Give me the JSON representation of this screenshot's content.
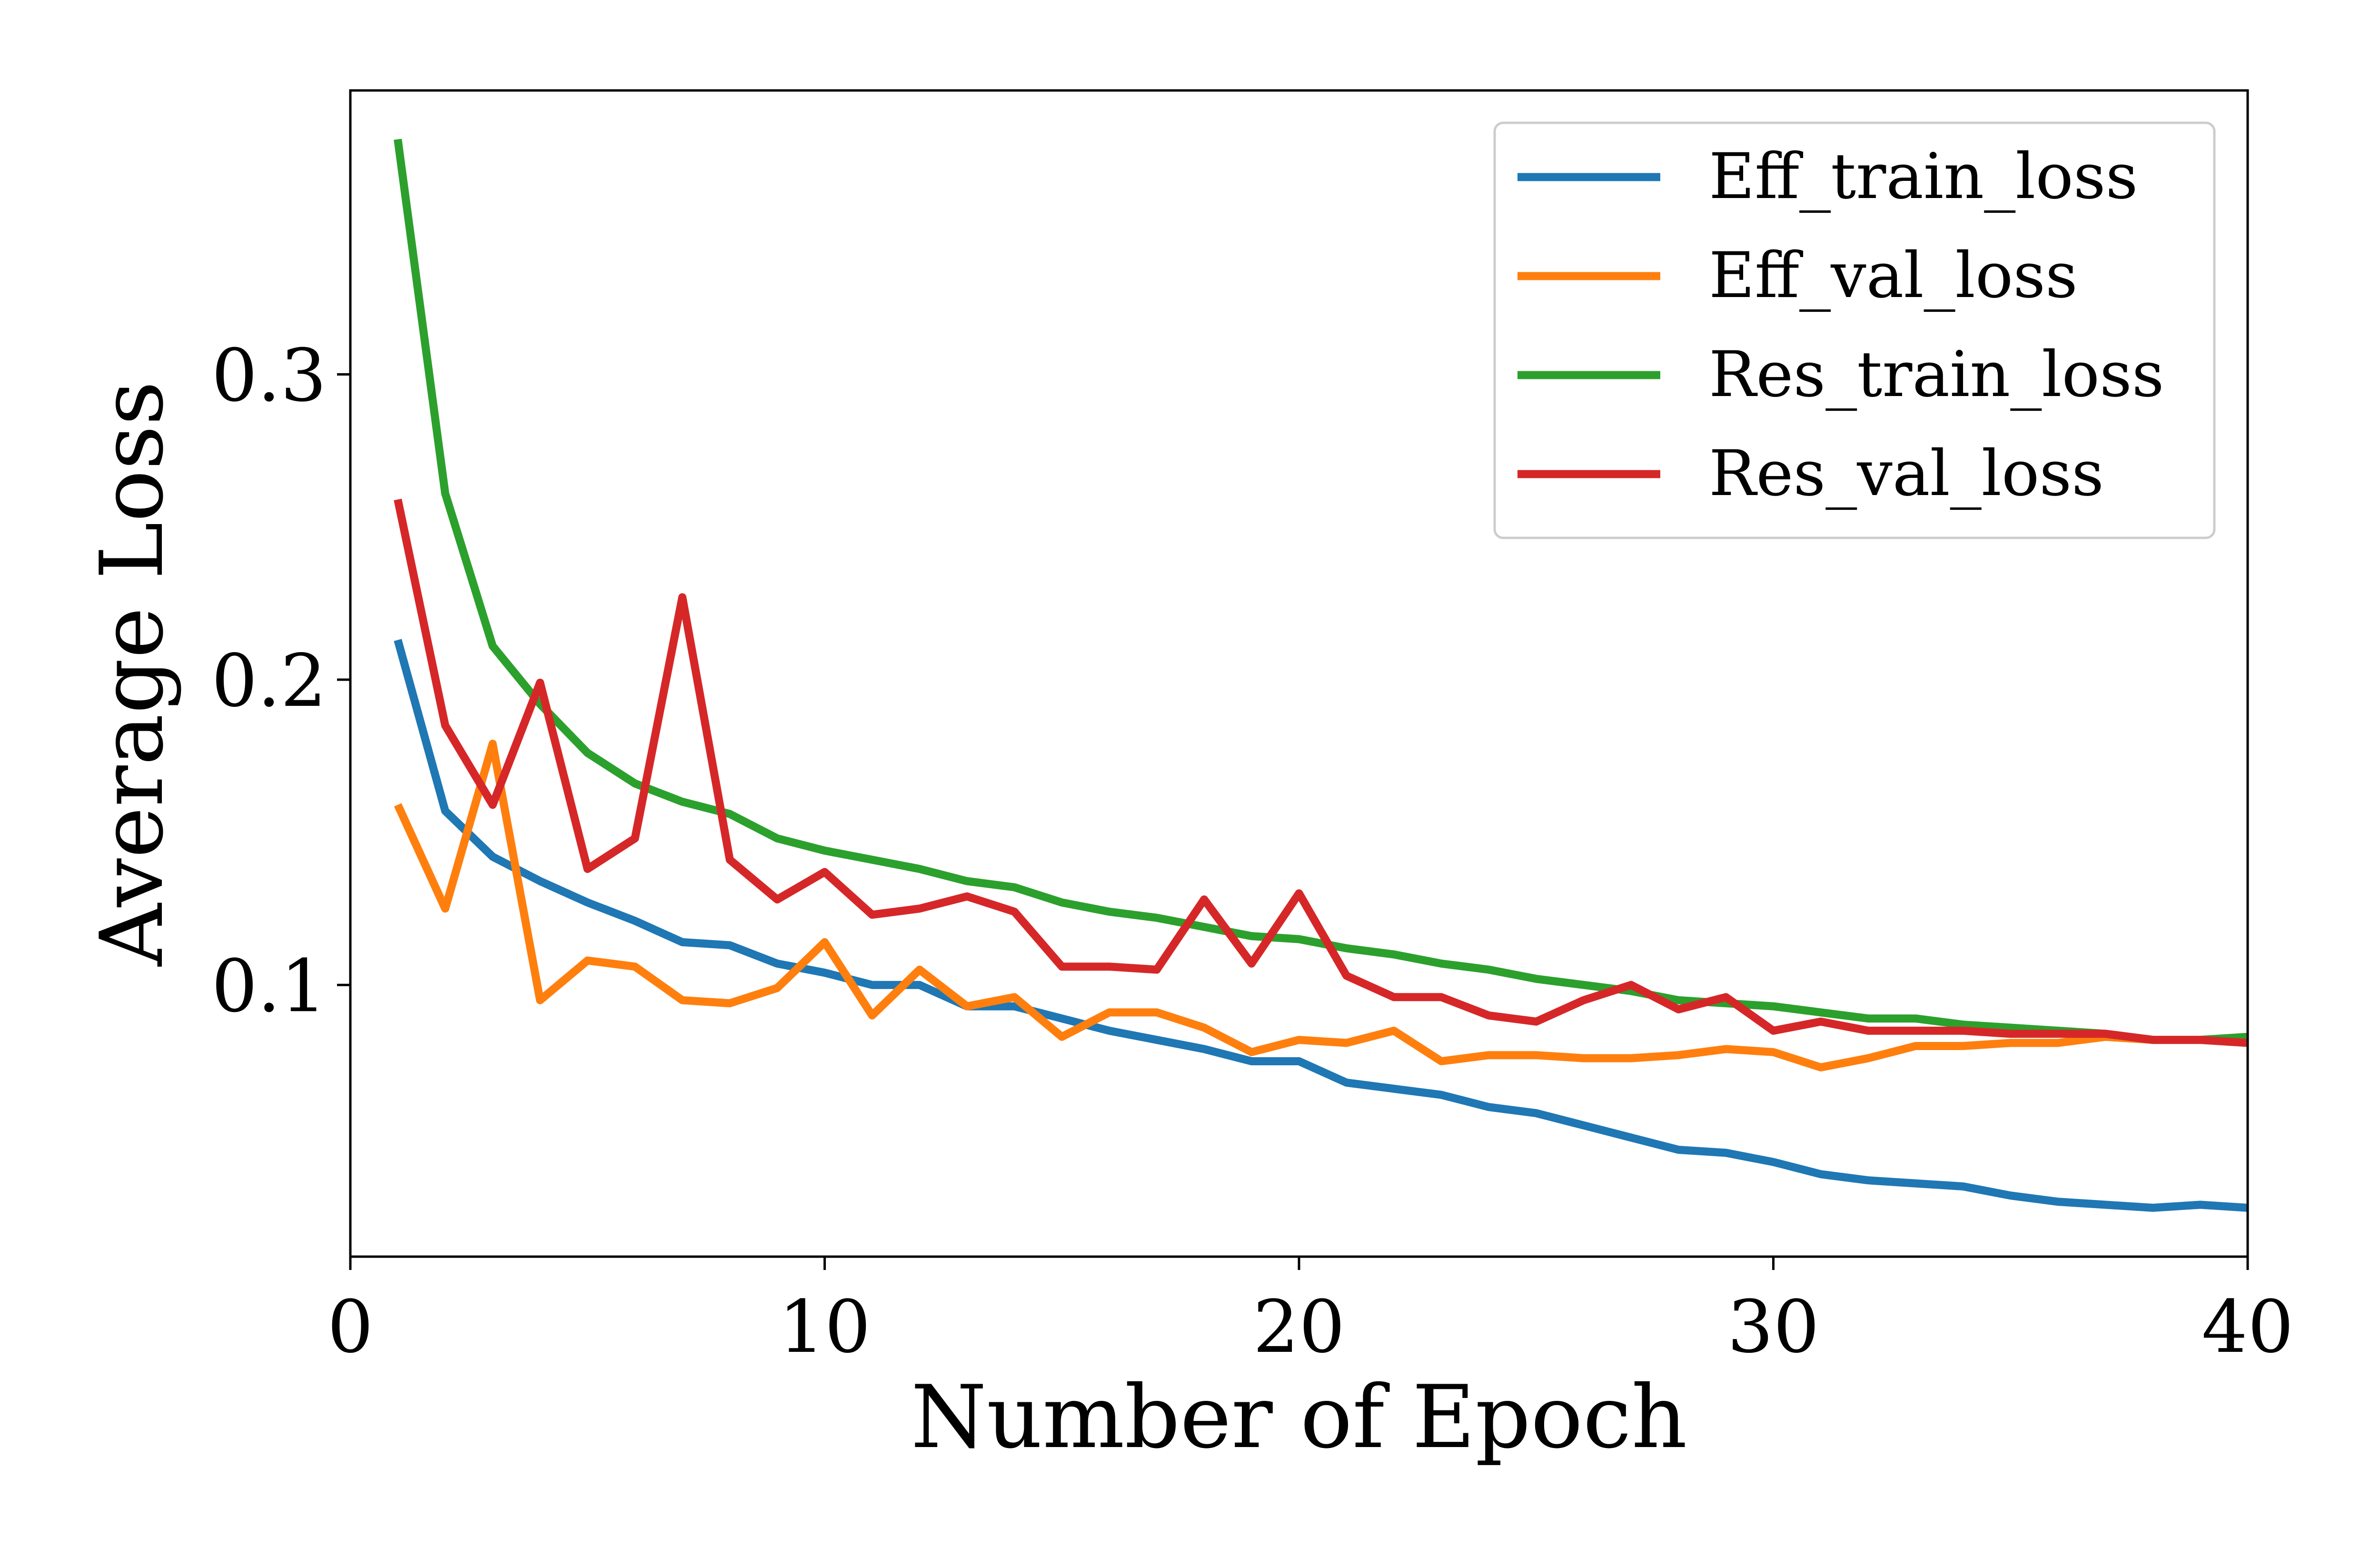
{
  "chart_data": {
    "type": "line",
    "title": "",
    "xlabel": "Number of Epoch",
    "ylabel": "Average Loss",
    "xlim": [
      0,
      40
    ],
    "ylim": [
      0.011,
      0.393
    ],
    "xticks": [
      0,
      10,
      20,
      30,
      40
    ],
    "xtick_labels": [
      "0",
      "10",
      "20",
      "30",
      "40"
    ],
    "yticks": [
      0.1,
      0.2,
      0.3
    ],
    "ytick_labels": [
      "0.1",
      "0.2",
      "0.3"
    ],
    "grid": false,
    "legend_position": "upper right",
    "x": [
      1,
      2,
      3,
      4,
      5,
      6,
      7,
      8,
      9,
      10,
      11,
      12,
      13,
      14,
      15,
      16,
      17,
      18,
      19,
      20,
      21,
      22,
      23,
      24,
      25,
      26,
      27,
      28,
      29,
      30,
      31,
      32,
      33,
      34,
      35,
      36,
      37,
      38,
      39,
      40
    ],
    "series": [
      {
        "name": "Eff_train_loss",
        "color": "#1f77b4",
        "values": [
          0.213,
          0.157,
          0.142,
          0.134,
          0.127,
          0.121,
          0.114,
          0.113,
          0.107,
          0.104,
          0.1,
          0.1,
          0.093,
          0.093,
          0.089,
          0.085,
          0.082,
          0.079,
          0.075,
          0.075,
          0.068,
          0.066,
          0.064,
          0.06,
          0.058,
          0.054,
          0.05,
          0.046,
          0.045,
          0.042,
          0.038,
          0.036,
          0.035,
          0.034,
          0.031,
          0.029,
          0.028,
          0.027,
          0.028,
          0.027
        ]
      },
      {
        "name": "Eff_val_loss",
        "color": "#ff7f0e",
        "values": [
          0.159,
          0.125,
          0.179,
          0.095,
          0.108,
          0.106,
          0.095,
          0.094,
          0.099,
          0.114,
          0.09,
          0.105,
          0.093,
          0.096,
          0.083,
          0.091,
          0.091,
          0.086,
          0.078,
          0.082,
          0.081,
          0.085,
          0.075,
          0.077,
          0.077,
          0.076,
          0.076,
          0.077,
          0.079,
          0.078,
          0.073,
          0.076,
          0.08,
          0.08,
          0.081,
          0.081,
          0.083,
          0.082,
          0.082,
          0.082
        ]
      },
      {
        "name": "Res_train_loss",
        "color": "#2ca02c",
        "values": [
          0.377,
          0.261,
          0.211,
          0.192,
          0.176,
          0.166,
          0.16,
          0.156,
          0.148,
          0.144,
          0.141,
          0.138,
          0.134,
          0.132,
          0.127,
          0.124,
          0.122,
          0.119,
          0.116,
          0.115,
          0.112,
          0.11,
          0.107,
          0.105,
          0.102,
          0.1,
          0.098,
          0.095,
          0.094,
          0.093,
          0.091,
          0.089,
          0.089,
          0.087,
          0.086,
          0.085,
          0.084,
          0.082,
          0.082,
          0.083
        ]
      },
      {
        "name": "Res_val_loss",
        "color": "#d62728",
        "values": [
          0.259,
          0.185,
          0.159,
          0.199,
          0.138,
          0.148,
          0.227,
          0.141,
          0.128,
          0.137,
          0.123,
          0.125,
          0.129,
          0.124,
          0.106,
          0.106,
          0.105,
          0.128,
          0.107,
          0.13,
          0.103,
          0.096,
          0.096,
          0.09,
          0.088,
          0.095,
          0.1,
          0.092,
          0.096,
          0.085,
          0.088,
          0.085,
          0.085,
          0.085,
          0.084,
          0.084,
          0.084,
          0.082,
          0.082,
          0.081
        ]
      }
    ]
  }
}
